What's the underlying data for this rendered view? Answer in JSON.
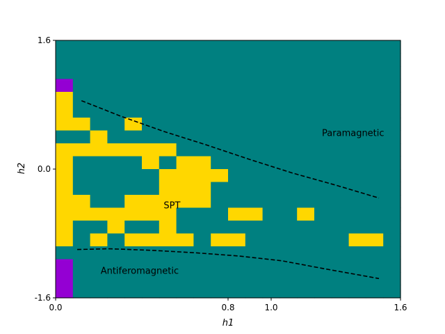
{
  "chart_data": {
    "type": "heatmap",
    "title": "",
    "xlabel": "h1",
    "ylabel": "h2",
    "xlim": [
      0.0,
      1.6
    ],
    "ylim": [
      -1.6,
      1.6
    ],
    "xticks": [
      {
        "value": 0.0,
        "label": "0.0"
      },
      {
        "value": 0.8,
        "label": "0.8"
      },
      {
        "value": 1.0,
        "label": "1.0"
      },
      {
        "value": 1.6,
        "label": "1.6"
      }
    ],
    "yticks": [
      {
        "value": -1.6,
        "label": "-1.6"
      },
      {
        "value": 0.0,
        "label": "0.0"
      },
      {
        "value": 1.6,
        "label": "1.6"
      }
    ],
    "grid": false,
    "legend": "none",
    "colors": {
      "T": "#008080",
      "Y": "#ffd700",
      "P": "#9400d3"
    },
    "grid_cols": 20,
    "grid_rows": 20,
    "rows_top_to_bottom": [
      "TTTTTTTTTTTTTTTTTTTT",
      "TTTTTTTTTTTTTTTTTTTT",
      "TTTTTTTTTTTTTTTTTTTT",
      "PTTTTTTTTTTTTTTTTTTT",
      "YTTTTTTTTTTTTTTTTTTT",
      "YTTTTTTTTTTTTTTTTTTT",
      "YYTTYTTTTTTTTTTTTTTT",
      "TTYTTTTTTTTTTTTTTTTT",
      "YYYYYYYTTTTTTTTTTTTT",
      "YTTTTYTYYTTTTTTTTTTT",
      "YTTTTTYYYYTTTTTTTTTT",
      "YTTTTTYYYTTTTTTTTTTT",
      "YYTTYYYYYTTTTTTTTTTT",
      "YYYYYYYTTTYYTTYTTTTT",
      "YTTYTTYTTTTTTTTTTTTT",
      "YTYTYYYYTYYTTTTTTYYT",
      "TTTTTTTTTTTTTTTTTTTT",
      "PTTTTTTTTTTTTTTTTTTT",
      "PTTTTTTTTTTTTTTTTTTT",
      "PTTTTTTTTTTTTTTTTTTT"
    ],
    "boundaries": [
      {
        "points": [
          [
            0.12,
            0.85
          ],
          [
            0.3,
            0.66
          ],
          [
            0.5,
            0.47
          ],
          [
            0.7,
            0.3
          ],
          [
            0.9,
            0.12
          ],
          [
            1.1,
            -0.05
          ],
          [
            1.3,
            -0.2
          ],
          [
            1.5,
            -0.36
          ]
        ]
      },
      {
        "points": [
          [
            0.1,
            -1.0
          ],
          [
            0.25,
            -0.99
          ],
          [
            0.45,
            -1.01
          ],
          [
            0.65,
            -1.04
          ],
          [
            0.85,
            -1.08
          ],
          [
            1.05,
            -1.14
          ],
          [
            1.25,
            -1.24
          ],
          [
            1.5,
            -1.36
          ]
        ]
      }
    ],
    "annotations": [
      {
        "text": "Paramagnetic",
        "x": 1.38,
        "y": 0.44
      },
      {
        "text": "SPT",
        "x": 0.54,
        "y": -0.46
      },
      {
        "text": "Antiferomagnetic",
        "x": 0.39,
        "y": -1.27
      }
    ]
  }
}
